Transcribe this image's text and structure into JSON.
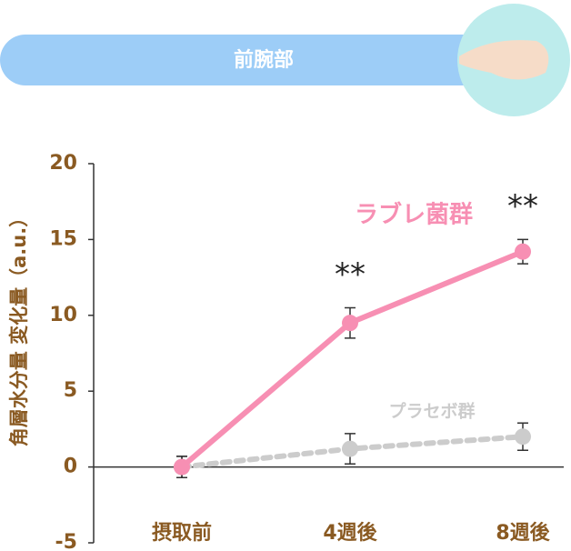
{
  "chart_data": {
    "type": "line",
    "panel_label": "前腕部",
    "y_label": "角層水分量 変化量（a.u.）",
    "categories": [
      "摂取前",
      "4週後",
      "8週後"
    ],
    "series": [
      {
        "name": "ラブレ菌群",
        "color": "#f78fb3",
        "dashed": false,
        "values": [
          0,
          9.5,
          14.2
        ],
        "errors": [
          0.7,
          1.0,
          0.8
        ]
      },
      {
        "name": "プラセボ群",
        "color": "#cccccc",
        "dashed": true,
        "values": [
          0,
          1.2,
          2.0
        ],
        "errors": [
          0.7,
          1.0,
          0.9
        ]
      }
    ],
    "annotations": [
      {
        "text": "**",
        "category": 1
      },
      {
        "text": "**",
        "category": 2
      }
    ],
    "ylim": [
      -5,
      20
    ],
    "yticks": [
      -5,
      0,
      5,
      10,
      15,
      20
    ],
    "grid": false
  }
}
